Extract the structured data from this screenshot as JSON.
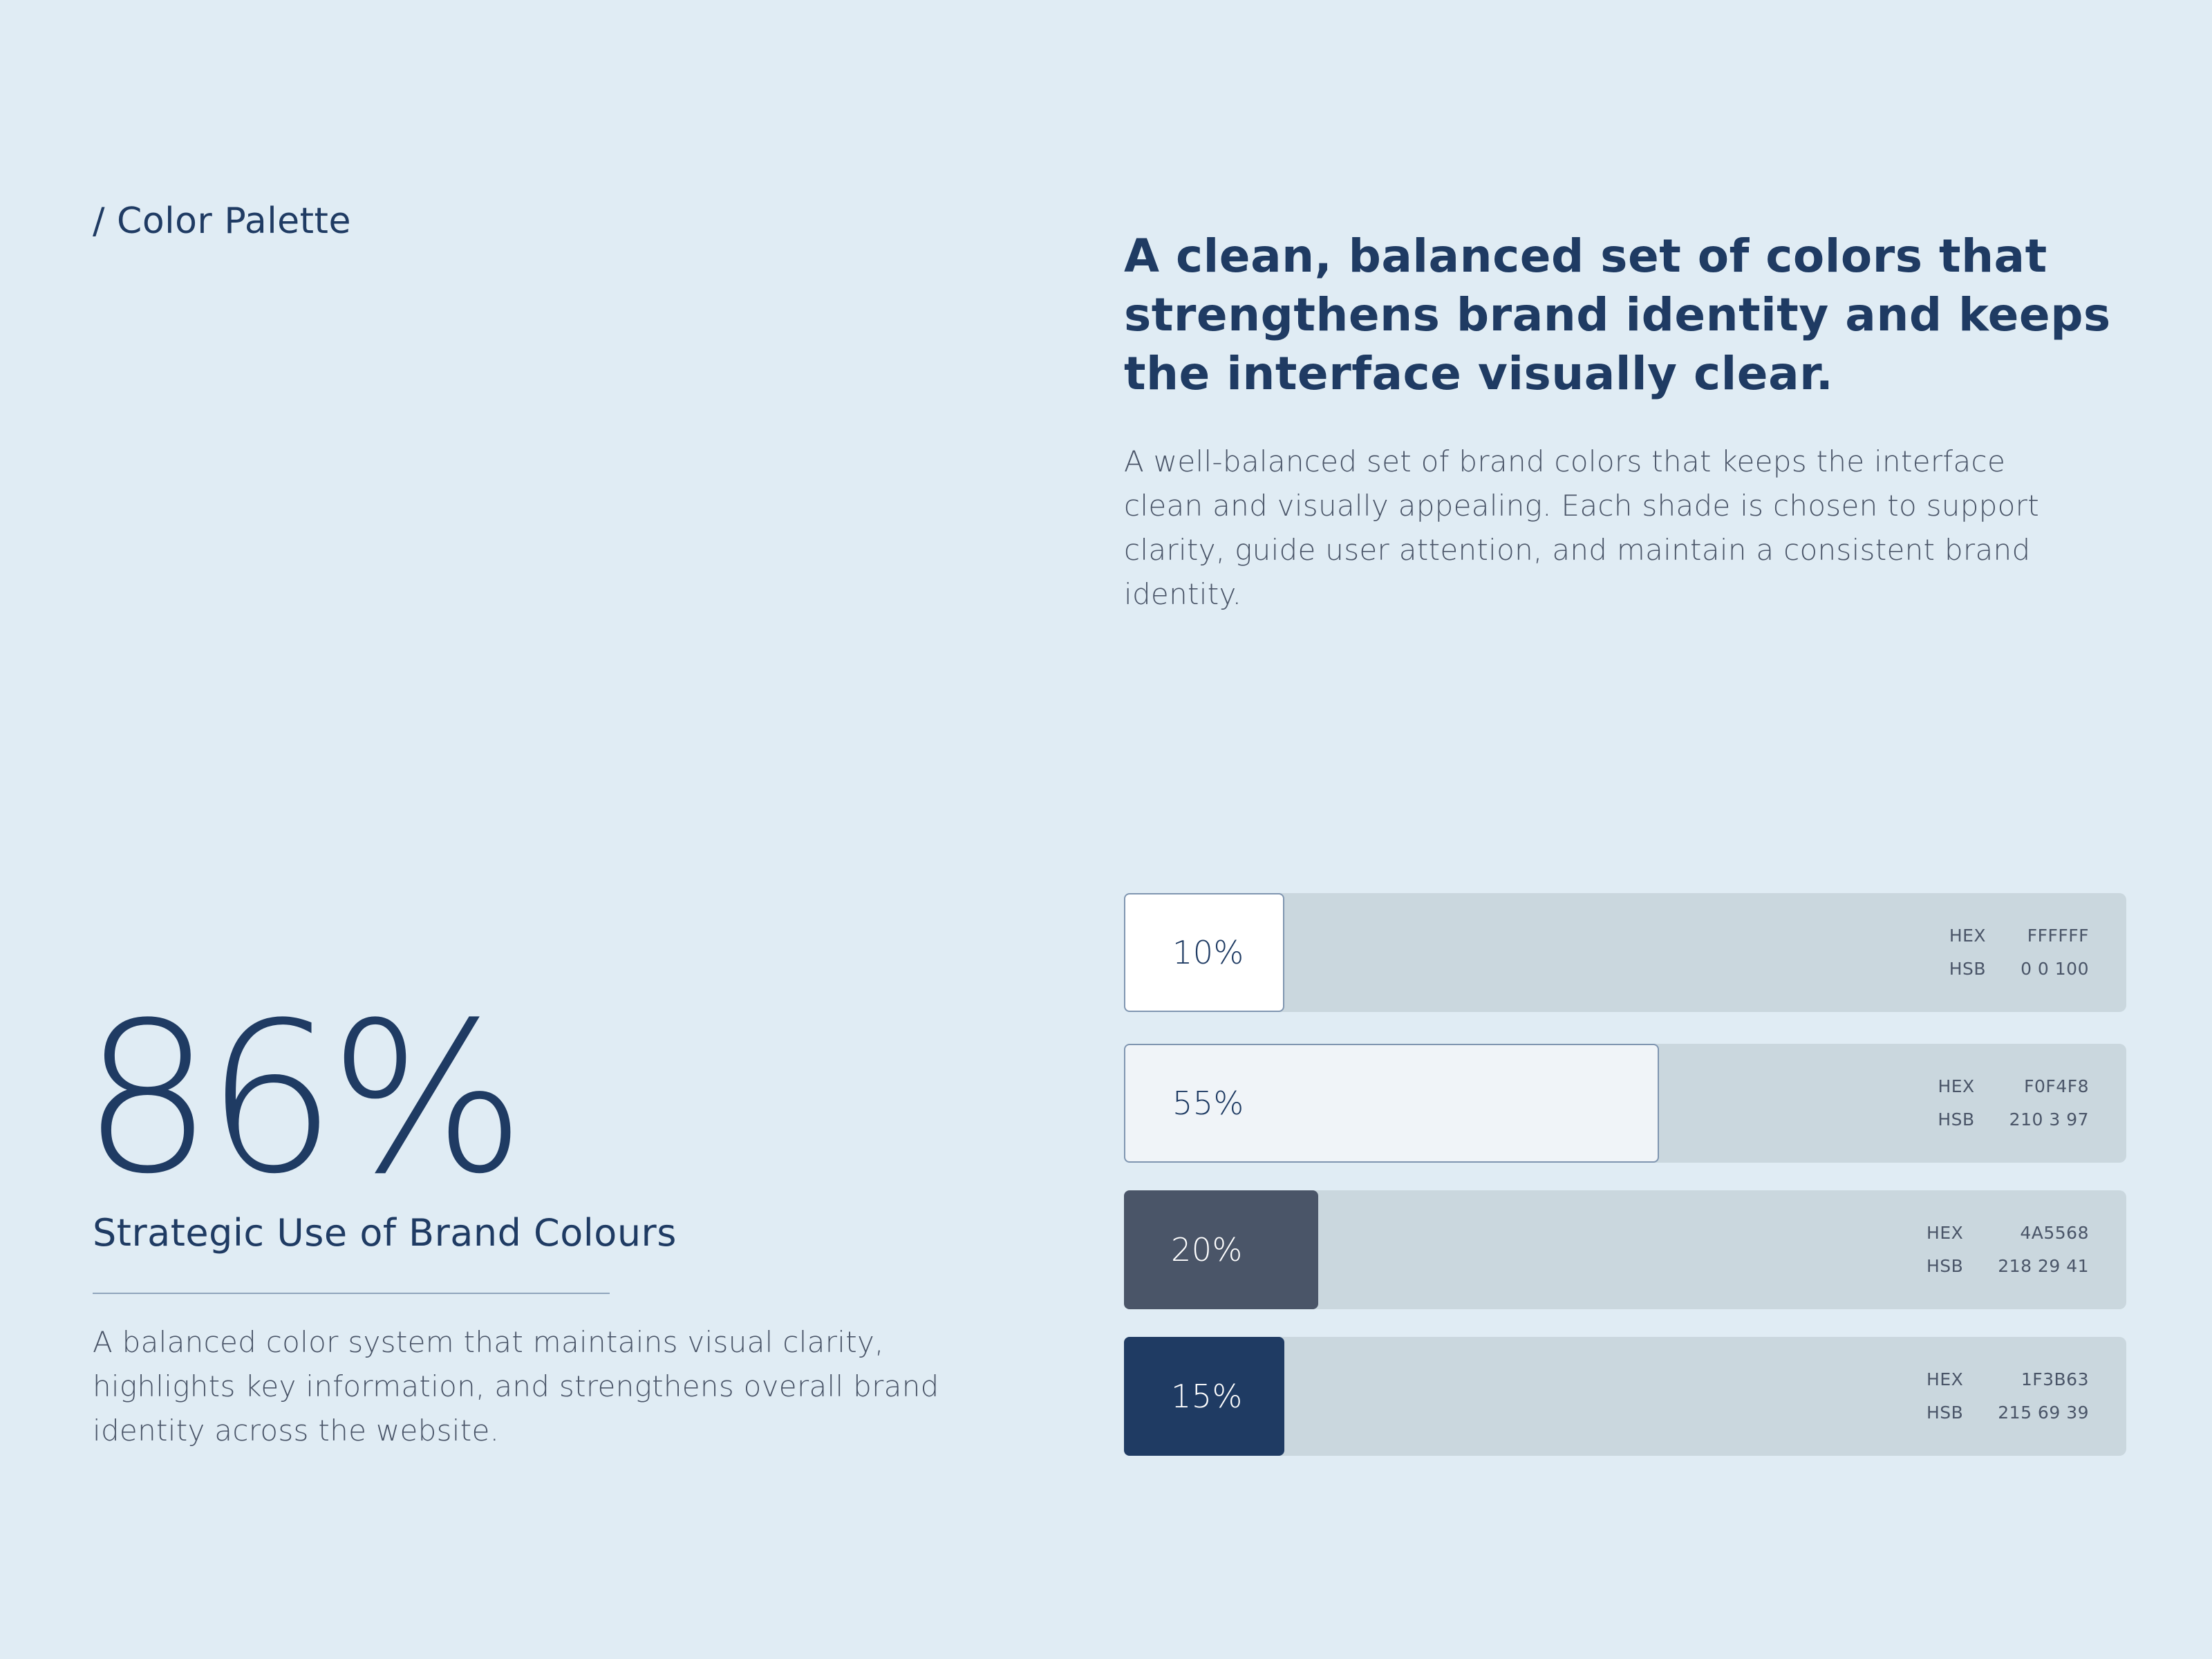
{
  "section": {
    "eyebrow": "/ Color Palette"
  },
  "hero": {
    "headline": "A clean, balanced set of colors that strengthens brand identity and keeps the interface visually clear.",
    "intro": "A well-balanced set of brand colors that keeps the interface clean and visually appealing. Each shade is chosen to support clarity, guide user attention, and maintain a consistent brand identity."
  },
  "stat": {
    "value": "86%",
    "label": "Strategic Use of Brand Colours",
    "description": "A balanced color system that maintains visual clarity, highlights key information, and strengthens overall brand identity across the website."
  },
  "palette": [
    {
      "percent_label": "10%",
      "usage": 0.1,
      "color": "#FFFFFF",
      "text_color": "#1F3B63",
      "hex_label": "HEX",
      "hex": "FFFFFF",
      "hsb_label": "HSB",
      "hsb": "0  0  100"
    },
    {
      "percent_label": "55%",
      "usage": 0.55,
      "color": "#F0F4F8",
      "text_color": "#1F3B63",
      "hex_label": "HEX",
      "hex": "F0F4F8",
      "hsb_label": "HSB",
      "hsb": "210  3  97"
    },
    {
      "percent_label": "20%",
      "usage": 0.2,
      "color": "#4A5568",
      "text_color": "#FFFFFF",
      "hex_label": "HEX",
      "hex": "4A5568",
      "hsb_label": "HSB",
      "hsb": "218  29  41"
    },
    {
      "percent_label": "15%",
      "usage": 0.15,
      "color": "#1F3B63",
      "text_color": "#FFFFFF",
      "hex_label": "HEX",
      "hex": "1F3B63",
      "hsb_label": "HSB",
      "hsb": "215  69  39"
    }
  ],
  "colors": {
    "background": "#E0ECF4",
    "track": "#CAD7DE",
    "primary_text": "#1F3B63",
    "body_text": "#4A5568"
  }
}
